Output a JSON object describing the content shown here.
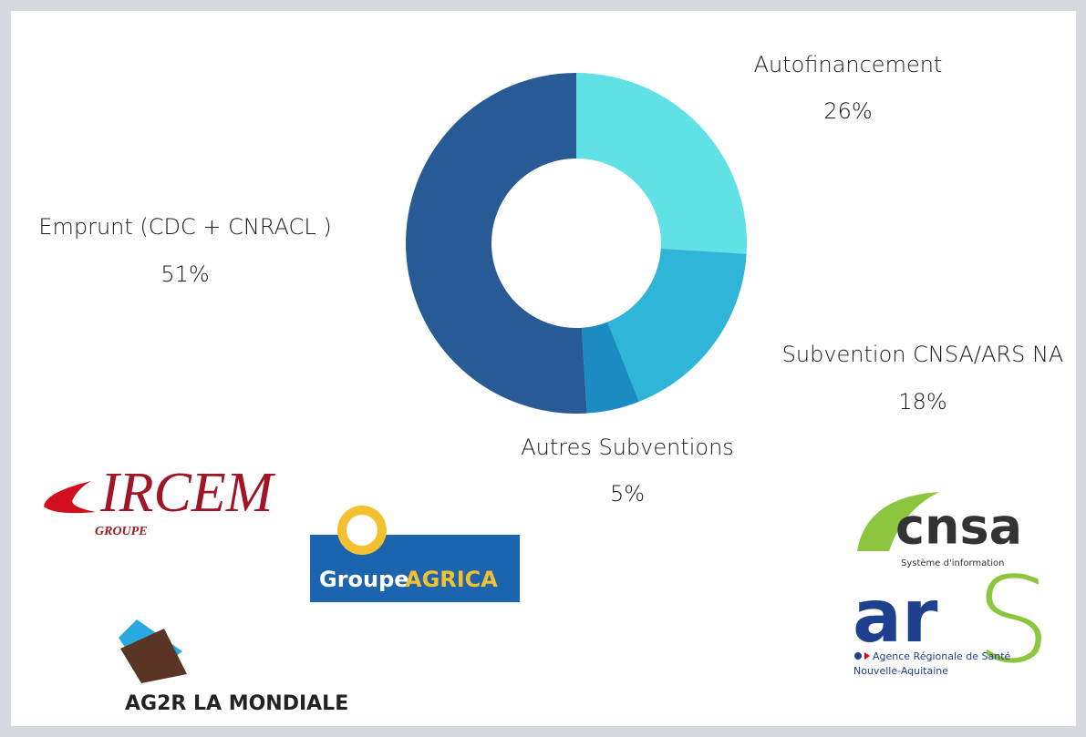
{
  "chart_data": {
    "type": "pie",
    "donut": true,
    "categories": [
      "Autofinancement",
      "Subvention CNSA/ARS NA",
      "Autres Subventions",
      "Emprunt (CDC + CNRACL )"
    ],
    "values": [
      26,
      18,
      5,
      51
    ],
    "value_labels": [
      "26%",
      "18%",
      "5%",
      "51%"
    ],
    "colors": [
      "#5fe1e6",
      "#2fb5d7",
      "#1a8cc1",
      "#285b96"
    ]
  },
  "logos": {
    "ircem": {
      "name": "IRCEM",
      "sub": "GROUPE"
    },
    "agrica": {
      "name": "Groupe",
      "accent": "AGRICA"
    },
    "ag2r": {
      "name": "AG2R LA MONDIALE"
    },
    "cnsa": {
      "name": "cnsa",
      "sub": "Système d'information"
    },
    "ars": {
      "name": "ar",
      "s": "S",
      "line1": "Agence Régionale de Santé",
      "line2": "Nouvelle-Aquitaine"
    }
  }
}
